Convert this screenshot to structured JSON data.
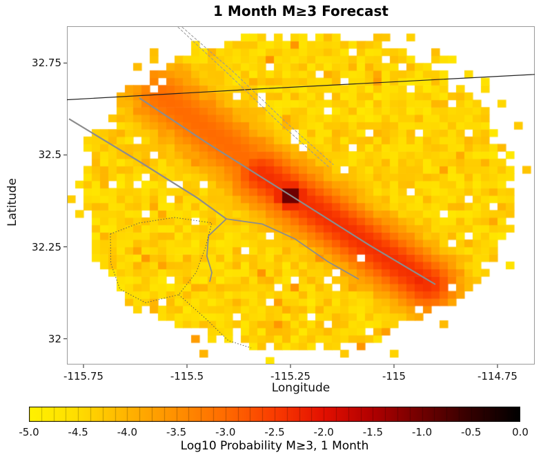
{
  "chart_data": {
    "type": "heatmap",
    "title": "1 Month M≥3 Forecast",
    "xlabel": "Longitude",
    "ylabel": "Latitude",
    "xlim": [
      -115.79,
      -114.66
    ],
    "ylim": [
      31.93,
      32.85
    ],
    "x_ticks": [
      -115.75,
      -115.5,
      -115.25,
      -115.0,
      -114.75
    ],
    "x_tick_labels": [
      "-115.75",
      "-115.5",
      "-115.25",
      "-115",
      "-114.75"
    ],
    "y_ticks": [
      32.75,
      32.5,
      32.25,
      32.0
    ],
    "y_tick_labels": [
      "32.75",
      "32.5",
      "32.25",
      "32"
    ],
    "colorbar": {
      "label": "Log10 Probability M≥3, 1 Month",
      "min": -5,
      "max": 0,
      "segments": 40,
      "tick_values": [
        -5.0,
        -4.5,
        -4.0,
        -3.5,
        -3.0,
        -2.5,
        -2.0,
        -1.5,
        -1.0,
        -0.5,
        0.0
      ],
      "tick_labels": [
        "-5.0",
        "-4.5",
        "-4.0",
        "-3.5",
        "-3.0",
        "-2.5",
        "-2.0",
        "-1.5",
        "-1.0",
        "-0.5",
        "0.0"
      ],
      "stops": [
        [
          -5.0,
          "#FFF200"
        ],
        [
          -4.5,
          "#FFDD00"
        ],
        [
          -4.0,
          "#FFB400"
        ],
        [
          -3.5,
          "#FF9000"
        ],
        [
          -3.0,
          "#FF6B00"
        ],
        [
          -2.5,
          "#FA3C00"
        ],
        [
          -2.0,
          "#E31000"
        ],
        [
          -1.5,
          "#B00000"
        ],
        [
          -1.0,
          "#700000"
        ],
        [
          -0.5,
          "#330000"
        ],
        [
          0.0,
          "#000000"
        ]
      ]
    },
    "grid": {
      "lon_min": -115.79,
      "lon_max": -114.67,
      "lat_min": 31.93,
      "lat_max": 32.85,
      "cell_deg": 0.02
    },
    "coverage": {
      "center": [
        -115.235,
        32.4
      ],
      "rx_deg": 0.52,
      "ry_deg": 0.43
    },
    "background_logp_range": [
      -4.68,
      -4.13
    ],
    "floor_logp": -4.6,
    "ridges": [
      {
        "from": [
          -115.56,
          32.66
        ],
        "to": [
          -115.3,
          32.44
        ],
        "peak_logp": -3.0,
        "width_deg": 0.09
      },
      {
        "from": [
          -115.32,
          32.45
        ],
        "to": [
          -114.92,
          32.15
        ],
        "peak_logp": -2.35,
        "width_deg": 0.085
      }
    ],
    "spots": [
      {
        "center": [
          -115.25,
          32.39
        ],
        "peak_logp": -0.55,
        "sigma_deg": 0.042
      },
      {
        "center": [
          -115.25,
          32.39
        ],
        "peak_logp": -2.8,
        "sigma_deg": 0.1
      },
      {
        "center": [
          -114.94,
          32.155
        ],
        "peak_logp": -2.25,
        "sigma_deg": 0.05
      }
    ],
    "noise": {
      "seed": 20104,
      "cell_logp_jitter": 0.35,
      "fleck_prob": 0.03,
      "pale_prob": 0.035,
      "hole_probs": {
        "low": 0.06,
        "mid": 0.02,
        "high": 0.003,
        "edge_extra": 0.05
      }
    }
  },
  "overlays": {
    "lines": [
      {
        "name": "international-border-line",
        "color": "#222222",
        "width": 1.2,
        "dash": null,
        "points": [
          [
            -115.79,
            32.65
          ],
          [
            -115.335,
            32.679
          ],
          [
            -114.66,
            32.719
          ]
        ]
      },
      {
        "name": "canal-hatch-line-a",
        "color": "#999999",
        "width": 1,
        "dash": "4 2",
        "points": [
          [
            -115.522,
            32.848
          ],
          [
            -115.4,
            32.72
          ],
          [
            -115.275,
            32.585
          ],
          [
            -115.155,
            32.465
          ]
        ]
      },
      {
        "name": "canal-hatch-line-b",
        "color": "#999999",
        "width": 1,
        "dash": "4 2",
        "points": [
          [
            -115.512,
            32.848
          ],
          [
            -115.39,
            32.728
          ],
          [
            -115.265,
            32.593
          ],
          [
            -115.146,
            32.473
          ]
        ]
      },
      {
        "name": "main-fault-line",
        "color": "#8c8c8c",
        "width": 2.2,
        "dash": null,
        "points": [
          [
            -115.615,
            32.655
          ],
          [
            -115.455,
            32.535
          ],
          [
            -115.25,
            32.39
          ],
          [
            -115.06,
            32.255
          ],
          [
            -114.9,
            32.148
          ]
        ]
      },
      {
        "name": "west-fault-line",
        "color": "#8c8c8c",
        "width": 2.2,
        "dash": null,
        "points": [
          [
            -115.785,
            32.598
          ],
          [
            -115.615,
            32.482
          ],
          [
            -115.475,
            32.383
          ],
          [
            -115.405,
            32.326
          ]
        ]
      },
      {
        "name": "canal-branch-south",
        "color": "#8c8c8c",
        "width": 1.8,
        "dash": null,
        "points": [
          [
            -115.405,
            32.326
          ],
          [
            -115.448,
            32.28
          ],
          [
            -115.452,
            32.225
          ],
          [
            -115.44,
            32.18
          ],
          [
            -115.445,
            32.155
          ]
        ]
      },
      {
        "name": "canal-branch-east",
        "color": "#8c8c8c",
        "width": 1.8,
        "dash": null,
        "points": [
          [
            -115.405,
            32.326
          ],
          [
            -115.318,
            32.312
          ],
          [
            -115.24,
            32.272
          ],
          [
            -115.16,
            32.21
          ],
          [
            -115.085,
            32.162
          ]
        ]
      },
      {
        "name": "dotted-boundary",
        "color": "#555555",
        "width": 1,
        "dash": "1.5 2.5",
        "points": [
          [
            -115.685,
            32.285
          ],
          [
            -115.615,
            32.315
          ],
          [
            -115.53,
            32.33
          ],
          [
            -115.44,
            32.315
          ],
          [
            -115.455,
            32.25
          ],
          [
            -115.478,
            32.18
          ],
          [
            -115.52,
            32.12
          ],
          [
            -115.6,
            32.098
          ],
          [
            -115.662,
            32.135
          ],
          [
            -115.684,
            32.205
          ],
          [
            -115.685,
            32.285
          ]
        ]
      },
      {
        "name": "dotted-boundary-tail",
        "color": "#555555",
        "width": 1,
        "dash": "1.5 2.5",
        "points": [
          [
            -115.52,
            32.12
          ],
          [
            -115.455,
            32.055
          ],
          [
            -115.4,
            31.995
          ],
          [
            -115.345,
            31.975
          ]
        ]
      }
    ]
  }
}
